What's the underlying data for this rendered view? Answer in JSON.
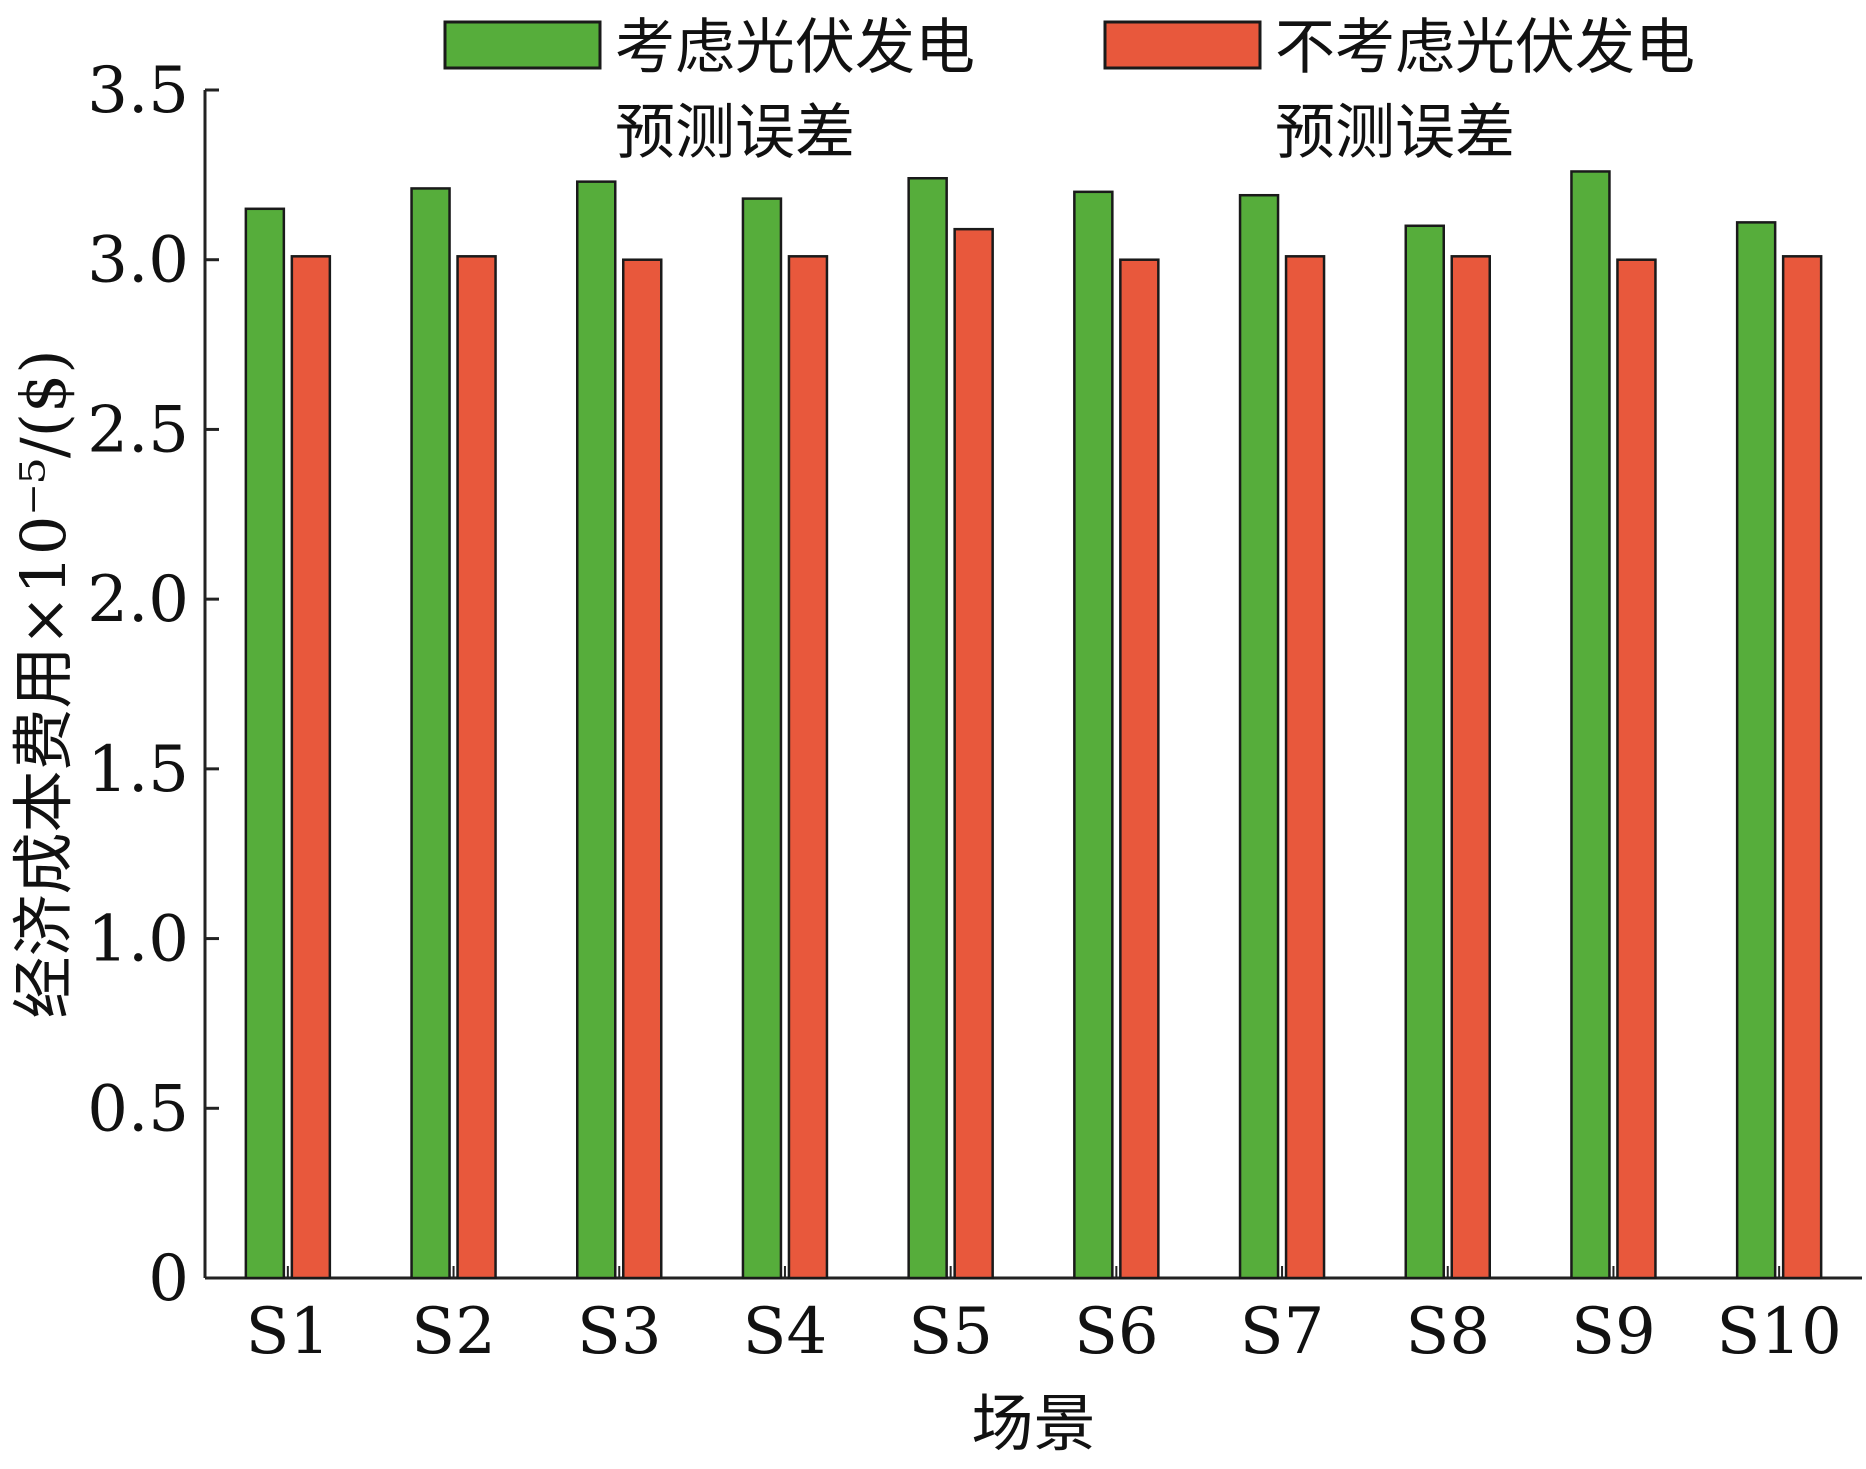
{
  "chart_data": {
    "type": "bar",
    "categories": [
      "S1",
      "S2",
      "S3",
      "S4",
      "S5",
      "S6",
      "S7",
      "S8",
      "S9",
      "S10"
    ],
    "series": [
      {
        "name": "考虑光伏发电预测误差",
        "name_lines": [
          "考虑光伏发电",
          "预测误差"
        ],
        "color": "#56ad3b",
        "values": [
          3.15,
          3.21,
          3.23,
          3.18,
          3.24,
          3.2,
          3.19,
          3.1,
          3.26,
          3.11
        ]
      },
      {
        "name": "不考虑光伏发电预测误差",
        "name_lines": [
          "不考虑光伏发电",
          "预测误差"
        ],
        "color": "#e8583c",
        "values": [
          3.01,
          3.01,
          3.0,
          3.01,
          3.09,
          3.0,
          3.01,
          3.01,
          3.0,
          3.01
        ]
      }
    ],
    "yticks": [
      {
        "value": 0,
        "label": "0"
      },
      {
        "value": 0.5,
        "label": "0.5"
      },
      {
        "value": 1.0,
        "label": "1.0"
      },
      {
        "value": 1.5,
        "label": "1.5"
      },
      {
        "value": 2.0,
        "label": "2.0"
      },
      {
        "value": 2.5,
        "label": "2.5"
      },
      {
        "value": 3.0,
        "label": "3.0"
      },
      {
        "value": 3.5,
        "label": "3.5"
      }
    ],
    "ylim": [
      0,
      3.5
    ],
    "xlabel": "场景",
    "ylabel": "经济成本费用×10⁻⁵/($)",
    "legend_position": "top",
    "grid": false
  }
}
